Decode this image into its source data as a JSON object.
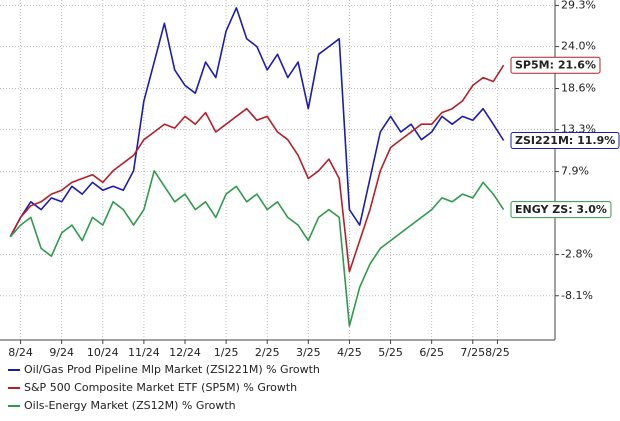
{
  "chart_data": {
    "type": "line",
    "x": [
      -0.25,
      0,
      0.25,
      0.5,
      0.75,
      1,
      1.25,
      1.5,
      1.75,
      2,
      2.25,
      2.5,
      2.75,
      3,
      3.25,
      3.5,
      3.75,
      4,
      4.25,
      4.5,
      4.75,
      5,
      5.25,
      5.5,
      5.75,
      6,
      6.25,
      6.5,
      6.75,
      7,
      7.25,
      7.5,
      7.75,
      8,
      8.25,
      8.5,
      8.75,
      9,
      9.25,
      9.5,
      9.75,
      10,
      10.25,
      10.5,
      10.75,
      11,
      11.25,
      11.5,
      11.75
    ],
    "xlim": [
      -0.5,
      13
    ],
    "xticks": [
      {
        "value": 0,
        "label": "8/24"
      },
      {
        "value": 1,
        "label": "9/24"
      },
      {
        "value": 2,
        "label": "10/24"
      },
      {
        "value": 3,
        "label": "11/24"
      },
      {
        "value": 4,
        "label": "12/24"
      },
      {
        "value": 5,
        "label": "1/25"
      },
      {
        "value": 6,
        "label": "2/25"
      },
      {
        "value": 7,
        "label": "3/25"
      },
      {
        "value": 8,
        "label": "4/25"
      },
      {
        "value": 9,
        "label": "5/25"
      },
      {
        "value": 10,
        "label": "6/25"
      },
      {
        "value": 11,
        "label": "7/25"
      },
      {
        "value": 11.6,
        "label": "8/25"
      }
    ],
    "ylim": [
      -13.8,
      30.0
    ],
    "yticks": [
      {
        "value": 29.3,
        "label": "29.3%"
      },
      {
        "value": 24.0,
        "label": "24.0%"
      },
      {
        "value": 18.6,
        "label": "18.6%"
      },
      {
        "value": 13.3,
        "label": "13.3%"
      },
      {
        "value": 7.9,
        "label": "7.9%"
      },
      {
        "value": -2.8,
        "label": "-2.8%"
      },
      {
        "value": -8.1,
        "label": "-8.1%"
      }
    ],
    "grid": true,
    "series": [
      {
        "name": "Oil/Gas Prod Pipeline Mlp Market (ZSI221M) % Growth",
        "color": "#1c1cad",
        "end_label": "ZSI221M: 11.9%",
        "values": [
          -0.5,
          2,
          4,
          3,
          4.5,
          4,
          6,
          5,
          6.5,
          5.5,
          6,
          5.5,
          8,
          17,
          22,
          27,
          21,
          19,
          18,
          22,
          20,
          26,
          29,
          25,
          24,
          21,
          23,
          20,
          22,
          16,
          23,
          24,
          25,
          3,
          1,
          7,
          13,
          15,
          13,
          14,
          12,
          13,
          15,
          14,
          15,
          14.5,
          16,
          14,
          11.9
        ]
      },
      {
        "name": "S&P 500 Composite Market ETF (SP5M) % Growth",
        "color": "#b3202a",
        "end_label": "SP5M: 21.6%",
        "values": [
          -0.5,
          2,
          3.5,
          4,
          5,
          5.5,
          6.5,
          7,
          7.5,
          6.5,
          8,
          9,
          10,
          12,
          13,
          14,
          13.5,
          15,
          14,
          15.5,
          13,
          14,
          15,
          16,
          14.5,
          15,
          13,
          12,
          10,
          7,
          8,
          9.5,
          7,
          -5,
          -1,
          3,
          8,
          11,
          12,
          13,
          14,
          14,
          15.5,
          16,
          17,
          19,
          20,
          19.5,
          21.6
        ]
      },
      {
        "name": "Oils-Energy Market (ZS12M) % Growth",
        "color": "#2f9a4c",
        "end_label": "ENGY ZS: 3.0%",
        "values": [
          -0.5,
          1,
          2,
          -2,
          -3,
          0,
          1,
          -1,
          2,
          1,
          4,
          3,
          1,
          3,
          8,
          6,
          4,
          5,
          3,
          4,
          2,
          5,
          6,
          4,
          5,
          3,
          4,
          2,
          1,
          -1,
          2,
          3,
          2,
          -12,
          -7,
          -4,
          -2,
          -1,
          0,
          1,
          2,
          3,
          4.5,
          4,
          5,
          4.5,
          6.5,
          5,
          3.0
        ]
      }
    ]
  }
}
